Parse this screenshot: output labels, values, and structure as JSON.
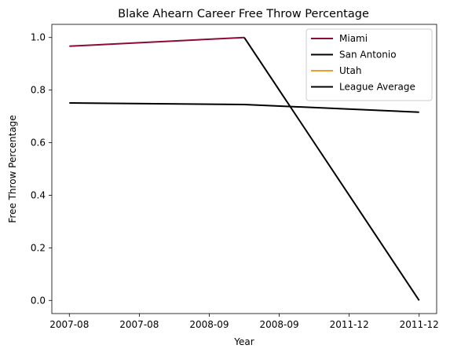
{
  "chart_data": {
    "type": "line",
    "title": "Blake Ahearn Career Free Throw Percentage",
    "xlabel": "Year",
    "ylabel": "Free Throw Percentage",
    "x_tick_labels": [
      "2007-08",
      "2007-08",
      "2008-09",
      "2008-09",
      "2011-12",
      "2011-12"
    ],
    "y_ticks": [
      0.0,
      0.2,
      0.4,
      0.6,
      0.8,
      1.0
    ],
    "y_tick_labels": [
      "0.0",
      "0.2",
      "0.4",
      "0.6",
      "0.8",
      "1.0"
    ],
    "ylim": [
      -0.05,
      1.05
    ],
    "xlim": [
      -0.25,
      5.25
    ],
    "grid": false,
    "legend_position": "top-right",
    "series": [
      {
        "name": "Miami",
        "color": "#8B0A3A",
        "x": [
          0,
          2.5
        ],
        "y": [
          0.967,
          1.0
        ]
      },
      {
        "name": "San Antonio",
        "color": "#000000",
        "x": [
          2.5,
          5
        ],
        "y": [
          1.0,
          0.0
        ]
      },
      {
        "name": "Utah",
        "color": "#F39C2B",
        "x": [],
        "y": []
      },
      {
        "name": "League Average",
        "color": "#000000",
        "x": [
          0,
          2.5,
          5
        ],
        "y": [
          0.751,
          0.745,
          0.716
        ]
      }
    ]
  }
}
